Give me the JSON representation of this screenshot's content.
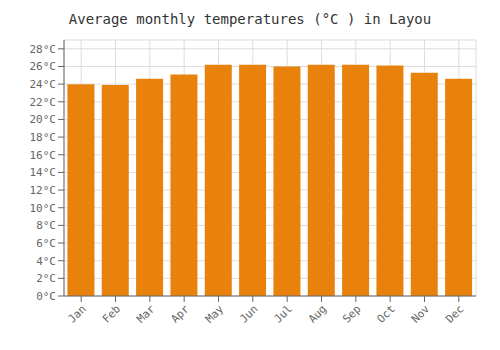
{
  "chart_data": {
    "type": "bar",
    "title": "Average monthly temperatures (°C ) in Layou",
    "categories": [
      "Jan",
      "Feb",
      "Mar",
      "Apr",
      "May",
      "Jun",
      "Jul",
      "Aug",
      "Sep",
      "Oct",
      "Nov",
      "Dec"
    ],
    "values": [
      24.0,
      23.9,
      24.6,
      25.1,
      26.2,
      26.2,
      26.0,
      26.2,
      26.2,
      26.1,
      25.3,
      24.6
    ],
    "color": "#E8820C",
    "ylim": [
      0,
      29
    ],
    "yticks": [
      {
        "value": 0,
        "label": "0°C"
      },
      {
        "value": 2,
        "label": "2°C"
      },
      {
        "value": 4,
        "label": "4°C"
      },
      {
        "value": 6,
        "label": "6°C"
      },
      {
        "value": 8,
        "label": "8°C"
      },
      {
        "value": 10,
        "label": "10°C"
      },
      {
        "value": 12,
        "label": "12°C"
      },
      {
        "value": 14,
        "label": "14°C"
      },
      {
        "value": 16,
        "label": "16°C"
      },
      {
        "value": 18,
        "label": "18°C"
      },
      {
        "value": 20,
        "label": "20°C"
      },
      {
        "value": 22,
        "label": "22°C"
      },
      {
        "value": 24,
        "label": "24°C"
      },
      {
        "value": 26,
        "label": "26°C"
      },
      {
        "value": 28,
        "label": "28°C"
      }
    ],
    "grid": true
  }
}
